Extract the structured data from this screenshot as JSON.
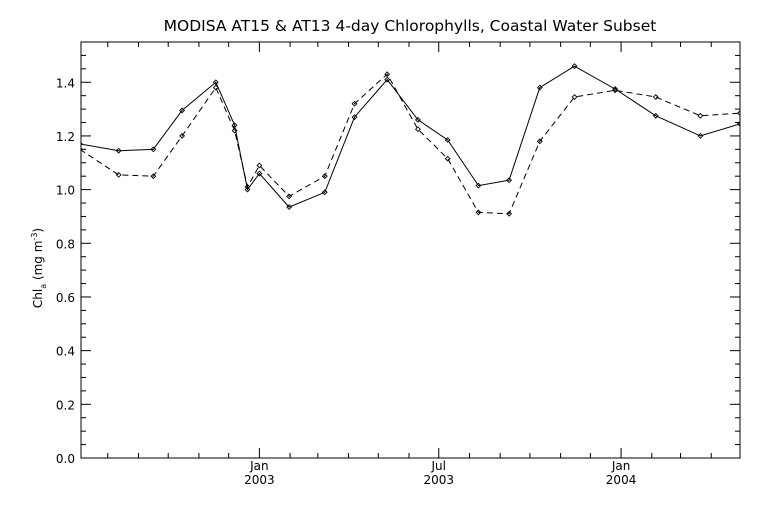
{
  "chart_data": {
    "type": "line",
    "title": "MODISA AT15 & AT13 4-day Chlorophylls, Coastal Water Subset",
    "ylabel": {
      "main": "Chl",
      "sub": "a",
      "unit_open": " (mg m",
      "unit_sup": "-3",
      "unit_close": ")"
    },
    "xlabel": "",
    "xlim": [
      "2002-07-05",
      "2004-04-30"
    ],
    "ylim": [
      0.0,
      1.55
    ],
    "yticks": [
      0.0,
      0.2,
      0.4,
      0.6,
      0.8,
      1.0,
      1.2,
      1.4
    ],
    "ytick_labels": [
      "0.0",
      "0.2",
      "0.4",
      "0.6",
      "0.8",
      "1.0",
      "1.2",
      "1.4"
    ],
    "xticks": [
      {
        "date": "2003-01-01",
        "month": "Jan",
        "year": "2003"
      },
      {
        "date": "2003-07-01",
        "month": "Jul",
        "year": "2003"
      },
      {
        "date": "2004-01-01",
        "month": "Jan",
        "year": "2004"
      }
    ],
    "grid": false,
    "legend": "none",
    "series": [
      {
        "style": "solid",
        "x": [
          "2002-07-04",
          "2002-08-12",
          "2002-09-16",
          "2002-10-15",
          "2002-11-18",
          "2002-12-07",
          "2002-12-20",
          "2003-01-01",
          "2003-01-31",
          "2003-03-08",
          "2003-04-07",
          "2003-05-10",
          "2003-06-10",
          "2003-07-10",
          "2003-08-10",
          "2003-09-10",
          "2003-10-11",
          "2003-11-15",
          "2003-12-26",
          "2004-02-05",
          "2004-03-21",
          "2004-04-30"
        ],
        "y": [
          1.17,
          1.145,
          1.15,
          1.295,
          1.4,
          1.24,
          1.0,
          1.06,
          0.935,
          0.99,
          1.27,
          1.41,
          1.26,
          1.185,
          1.015,
          1.035,
          1.38,
          1.46,
          1.375,
          1.275,
          1.2,
          1.245
        ]
      },
      {
        "style": "dashed",
        "x": [
          "2002-07-04",
          "2002-08-12",
          "2002-09-16",
          "2002-10-15",
          "2002-11-18",
          "2002-12-07",
          "2002-12-20",
          "2003-01-01",
          "2003-01-31",
          "2003-03-08",
          "2003-04-07",
          "2003-05-10",
          "2003-06-10",
          "2003-07-10",
          "2003-08-10",
          "2003-09-10",
          "2003-10-11",
          "2003-11-15",
          "2003-12-26",
          "2004-02-05",
          "2004-03-21",
          "2004-04-30"
        ],
        "y": [
          1.15,
          1.055,
          1.05,
          1.2,
          1.38,
          1.22,
          1.01,
          1.09,
          0.975,
          1.05,
          1.32,
          1.43,
          1.225,
          1.115,
          0.915,
          0.91,
          1.18,
          1.345,
          1.37,
          1.345,
          1.275,
          1.285
        ]
      }
    ]
  }
}
